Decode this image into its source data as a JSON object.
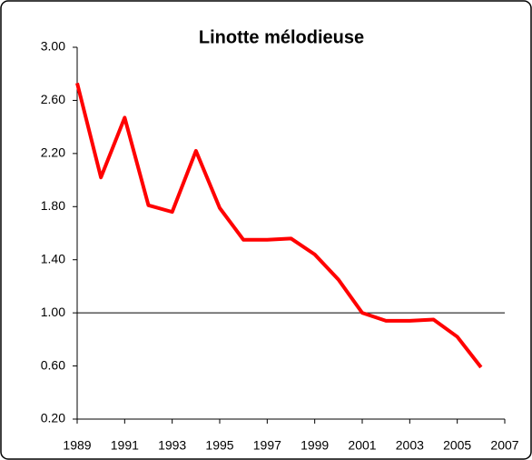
{
  "chart_data": {
    "type": "line",
    "title": "Linotte mélodieuse",
    "x": [
      1989,
      1990,
      1991,
      1992,
      1993,
      1994,
      1995,
      1996,
      1997,
      1998,
      1999,
      2000,
      2001,
      2002,
      2003,
      2004,
      2005,
      2006
    ],
    "series": [
      {
        "name": "Linotte mélodieuse",
        "color": "#ff0000",
        "values": [
          2.73,
          2.02,
          2.47,
          1.81,
          1.76,
          2.22,
          1.79,
          1.55,
          1.55,
          1.56,
          1.44,
          1.25,
          1.0,
          0.94,
          0.94,
          0.95,
          0.82,
          0.59
        ]
      }
    ],
    "xlim": [
      1989,
      2007
    ],
    "xticks": [
      1989,
      1991,
      1993,
      1995,
      1997,
      1999,
      2001,
      2003,
      2005,
      2007
    ],
    "ylim": [
      0.2,
      3.0
    ],
    "yticks": [
      {
        "value": 0.2,
        "label": "0.20"
      },
      {
        "value": 0.6,
        "label": "0.60"
      },
      {
        "value": 1.0,
        "label": "1.00"
      },
      {
        "value": 1.4,
        "label": "1.40"
      },
      {
        "value": 1.8,
        "label": "1.80"
      },
      {
        "value": 2.2,
        "label": "2.20"
      },
      {
        "value": 2.6,
        "label": "2.60"
      },
      {
        "value": 3.0,
        "label": "3.00"
      }
    ],
    "reference_line": 1.0,
    "grid": false
  }
}
